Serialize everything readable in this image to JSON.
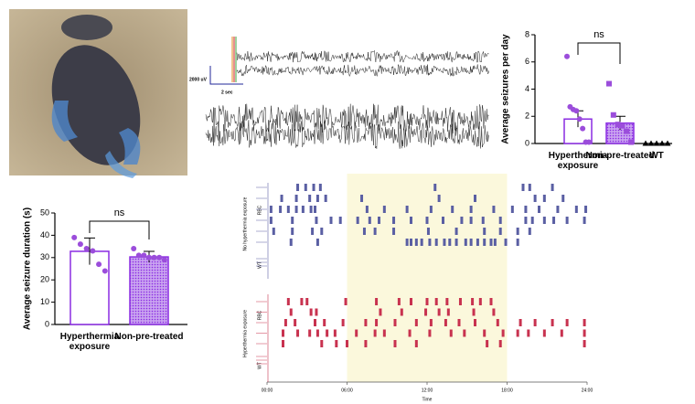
{
  "eeg": {
    "scale_y": "2000 uV",
    "scale_x": "2 sec"
  },
  "chart_data": [
    {
      "type": "bar",
      "ylabel": "Average seizures per day",
      "categories": [
        "Hyperthermia exposure",
        "Non-pre-treated",
        "WT"
      ],
      "values": [
        1.8,
        1.5,
        0
      ],
      "errors": [
        0.6,
        0.5,
        0
      ],
      "points": [
        [
          6.4,
          2.7,
          2.5,
          2.4,
          1.8,
          1.1,
          0.1,
          0.1
        ],
        [
          4.4,
          2.1,
          1.4,
          1.3,
          0.9,
          0.1
        ],
        [
          0,
          0,
          0,
          0,
          0
        ]
      ],
      "markers": [
        "circle",
        "square",
        "triangle"
      ],
      "point_colors": [
        "#9b4ddb",
        "#9b4ddb",
        "#000000"
      ],
      "patterned": [
        false,
        true,
        false
      ],
      "color": "#8a2be2",
      "ylim": [
        0,
        8
      ],
      "yticks": [
        0,
        2,
        4,
        6,
        8
      ],
      "annotation": "ns"
    },
    {
      "type": "bar",
      "ylabel": "Average seizure duration (s)",
      "categories": [
        "Hyperthermia exposure",
        "Non-pre-treated"
      ],
      "values": [
        32.8,
        30.3
      ],
      "errors": [
        6,
        2.5
      ],
      "points": [
        [
          39,
          36,
          34,
          33,
          27,
          24
        ],
        [
          34,
          31,
          31,
          30,
          30,
          30,
          29
        ]
      ],
      "markers": [
        "circle",
        "circle"
      ],
      "point_colors": [
        "#9b4ddb",
        "#9b4ddb"
      ],
      "patterned": [
        false,
        true
      ],
      "color": "#8a2be2",
      "ylim": [
        0,
        50
      ],
      "yticks": [
        0,
        10,
        20,
        30,
        40,
        50
      ],
      "annotation": "ns"
    },
    {
      "type": "raster",
      "xlabel": "Time",
      "xlim": [
        0,
        24
      ],
      "xticks": [
        {
          "value": 0,
          "label": "00:00"
        },
        {
          "value": 6,
          "label": "06:00"
        },
        {
          "value": 12,
          "label": "12:00"
        },
        {
          "value": 18,
          "label": "18:00"
        },
        {
          "value": 24,
          "label": "24:00"
        }
      ],
      "shaded": [
        6,
        18
      ],
      "shade_color": "#fbf8dc",
      "groups": [
        {
          "name": "No hyperthermia exposure",
          "color": "#5a5fa3",
          "subgroups": [
            {
              "label": "RBC",
              "rows": [
                [
                  2.3,
                  2.9,
                  3.5,
                  4.0,
                  12.6,
                  19.2,
                  19.7,
                  21.4
                ],
                [
                  1.1,
                  2.2,
                  3.2,
                  3.8,
                  4.4,
                  7.1,
                  12.9,
                  15.6,
                  20.1,
                  20.8,
                  22.2
                ],
                [
                  0.3,
                  1.0,
                  1.6,
                  2.2,
                  2.7,
                  3.3,
                  3.6,
                  7.5,
                  8.8,
                  10.5,
                  12.3,
                  13.9,
                  15.3,
                  17.0,
                  18.4,
                  19.4,
                  20.4,
                  21.8,
                  23.2,
                  23.9
                ],
                [
                  0.3,
                  1.9,
                  3.7,
                  4.8,
                  5.5,
                  6.8,
                  7.7,
                  8.4,
                  9.5,
                  10.8,
                  12.0,
                  13.2,
                  14.6,
                  15.3,
                  16.2,
                  17.5,
                  19.4,
                  19.9,
                  20.8,
                  21.5,
                  22.5,
                  23.8
                ],
                [
                  0.5,
                  1.9,
                  3.4,
                  4.1,
                  7.3,
                  8.1,
                  9.5,
                  12.1,
                  14.2,
                  16.3,
                  17.5,
                  18.8,
                  19.7
                ],
                [
                  1.8,
                  3.8,
                  10.5,
                  10.8,
                  11.2,
                  11.6,
                  12.2,
                  12.7,
                  13.3,
                  13.7,
                  14.2,
                  14.9,
                  15.3,
                  15.8,
                  16.3,
                  16.8,
                  17.1,
                  17.9,
                  18.8
                ]
              ]
            },
            {
              "label": "WT",
              "rows": []
            }
          ]
        },
        {
          "name": "Hyperthermia exposure",
          "color": "#c8324f",
          "subgroups": [
            {
              "label": "RBC",
              "rows": [
                [
                  1.6,
                  2.6,
                  3.0,
                  5.9,
                  8.2,
                  9.9,
                  10.8,
                  12.0,
                  12.7,
                  13.5,
                  14.5,
                  15.4,
                  16.0,
                  16.8
                ],
                [
                  1.8,
                  3.3,
                  3.7,
                  8.5,
                  10.1,
                  11.9,
                  12.9,
                  13.6,
                  15.5,
                  17.0
                ],
                [
                  1.4,
                  2.1,
                  3.6,
                  4.3,
                  5.7,
                  7.4,
                  8.2,
                  9.6,
                  11.2,
                  12.3,
                  13.4,
                  14.4,
                  15.6,
                  17.3,
                  19.0,
                  20.1,
                  21.4,
                  22.5,
                  23.8
                ],
                [
                  1.2,
                  2.3,
                  3.2,
                  3.8,
                  4.5,
                  5.1,
                  6.7,
                  8.1,
                  8.8,
                  10.7,
                  12.2,
                  13.8,
                  14.8,
                  16.3,
                  17.7,
                  18.8,
                  19.6,
                  20.8,
                  22.1,
                  23.8
                ],
                [
                  1.2,
                  4.1,
                  5.2,
                  6.0,
                  7.4,
                  9.6,
                  11.2,
                  16.5,
                  17.5,
                  23.8
                ]
              ]
            },
            {
              "label": "WT",
              "rows": []
            }
          ]
        }
      ]
    }
  ]
}
